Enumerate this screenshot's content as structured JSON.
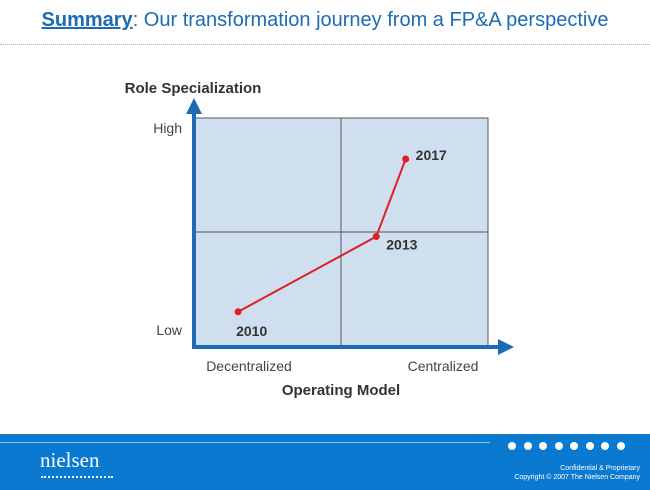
{
  "slide": {
    "title_keyword": "Summary",
    "title_rest": ": Our transformation journey from a FP&A perspective"
  },
  "chart_data": {
    "type": "line",
    "y_axis_title": "Role Specialization",
    "x_axis_title": "Operating Model",
    "y_ticks": [
      "Low",
      "High"
    ],
    "x_ticks": [
      "Decentralized",
      "Centralized"
    ],
    "xlim": [
      0,
      1
    ],
    "ylim": [
      0,
      1
    ],
    "quadrants": 4,
    "grid": true,
    "points": [
      {
        "label": "2010",
        "x": 0.15,
        "y": 0.15
      },
      {
        "label": "2013",
        "x": 0.62,
        "y": 0.48
      },
      {
        "label": "2017",
        "x": 0.72,
        "y": 0.82
      }
    ],
    "colors": {
      "line": "#e01e26",
      "quadrant_fill": "#cfdff0",
      "axis": "#1c6bb3"
    }
  },
  "footer": {
    "logo": "nielsen",
    "confidential": "Confidential & Proprietary",
    "copyright": "Copyright © 2007 The Nielsen Company",
    "colors": {
      "bar": "#0a7ad0"
    }
  }
}
